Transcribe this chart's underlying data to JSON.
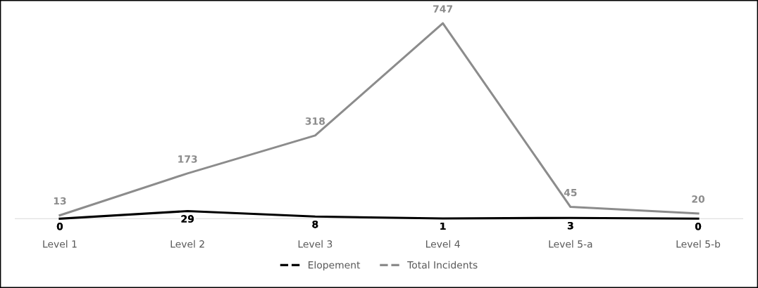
{
  "chart_data": {
    "type": "line",
    "categories": [
      "Level 1",
      "Level 2",
      "Level 3",
      "Level 4",
      "Level 5-a",
      "Level 5-b"
    ],
    "series": [
      {
        "name": "Elopement",
        "color": "#000000",
        "values": [
          0,
          29,
          8,
          1,
          3,
          0
        ]
      },
      {
        "name": "Total Incidents",
        "color": "#8c8c8c",
        "values": [
          13,
          173,
          318,
          747,
          45,
          20
        ]
      }
    ],
    "data_labels": true,
    "legend": "bottom",
    "grid": false,
    "line_style": "solid"
  }
}
